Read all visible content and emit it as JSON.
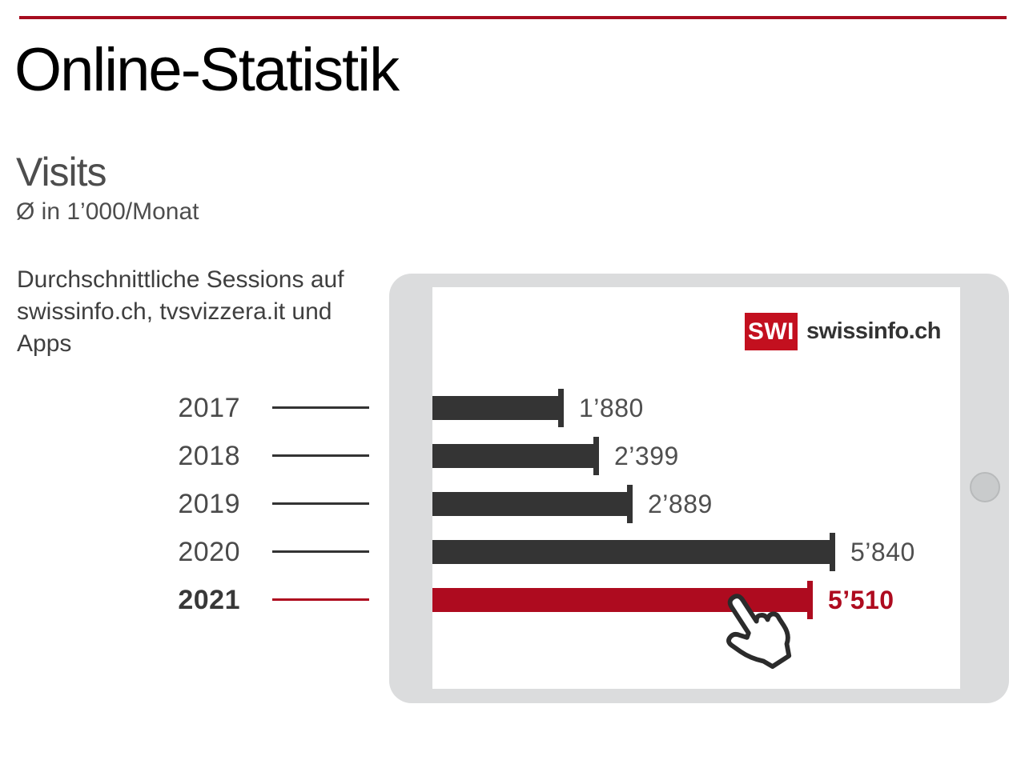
{
  "page": {
    "title": "Online-Statistik",
    "accent_rule_color": "#a60d1f"
  },
  "chart_header": {
    "title": "Visits",
    "unit": "Ø in 1’000/Monat",
    "description": "Durchschnittliche Sessions auf swissinfo.ch, tvsvizzera.it und Apps"
  },
  "logo": {
    "box_text": "SWI",
    "name": "swissinfo.ch",
    "box_color": "#c3101f",
    "text_color": "#333333"
  },
  "icons": {
    "cursor": "hand-pointer-icon",
    "device": "tablet-frame",
    "device_button": "home-button"
  },
  "chart_data": {
    "type": "bar",
    "orientation": "horizontal",
    "title": "Visits",
    "unit": "Ø in 1’000/Monat",
    "categories": [
      "2017",
      "2018",
      "2019",
      "2020",
      "2021"
    ],
    "values": [
      1880,
      2399,
      2889,
      5840,
      5510
    ],
    "value_labels": [
      "1’880",
      "2’399",
      "2’889",
      "5’840",
      "5’510"
    ],
    "highlight_index": 4,
    "bar_color": "#343434",
    "highlight_color": "#ae0b1f",
    "xlim": [
      0,
      5840
    ],
    "grid": false,
    "legend": false
  }
}
